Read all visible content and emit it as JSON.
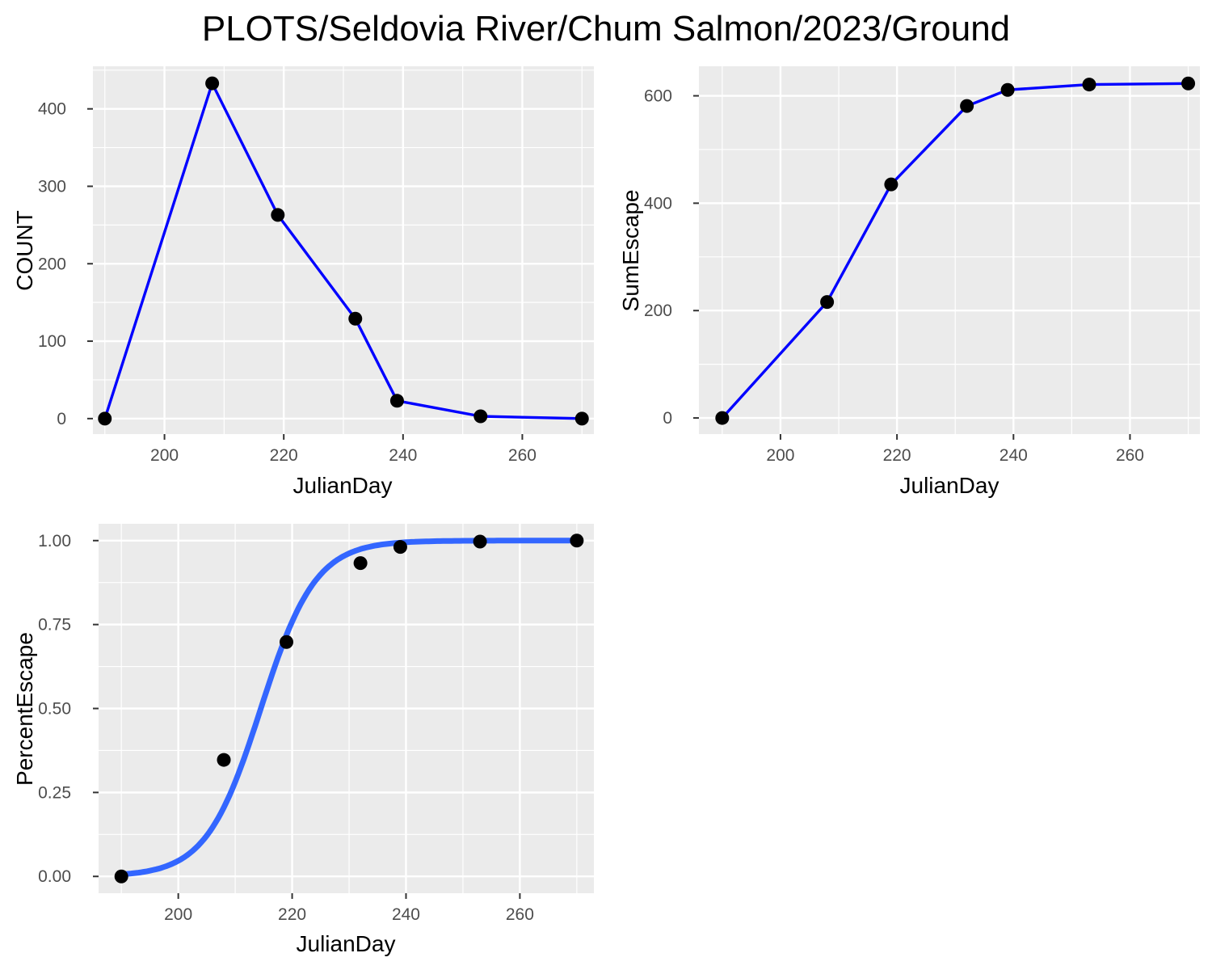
{
  "title": "PLOTS/Seldovia River/Chum Salmon/2023/Ground",
  "colors": {
    "panel": "#ebebeb",
    "grid": "#ffffff",
    "line": "#0000ff",
    "smooth": "#3366ff",
    "point": "#000000",
    "tick": "#333333"
  },
  "chart_data": [
    {
      "type": "line",
      "xlabel": "JulianDay",
      "ylabel": "COUNT",
      "xlim": [
        188,
        272
      ],
      "ylim": [
        -20,
        455
      ],
      "xticks": [
        200,
        220,
        240,
        260
      ],
      "yticks": [
        0,
        100,
        200,
        300,
        400
      ],
      "ytick_labels": [
        "0",
        "100",
        "200",
        "300",
        "400"
      ],
      "x": [
        190,
        208,
        219,
        232,
        239,
        253,
        270
      ],
      "y": [
        0,
        433,
        263,
        129,
        23,
        3,
        0
      ],
      "grid": true
    },
    {
      "type": "line",
      "xlabel": "JulianDay",
      "ylabel": "SumEscape",
      "xlim": [
        186,
        272
      ],
      "ylim": [
        -30,
        655
      ],
      "xticks": [
        200,
        220,
        240,
        260
      ],
      "yticks": [
        0,
        200,
        400,
        600
      ],
      "ytick_labels": [
        "0",
        "200",
        "400",
        "600"
      ],
      "x": [
        190,
        208,
        219,
        232,
        239,
        253,
        270
      ],
      "y": [
        0,
        216,
        435,
        581,
        611,
        621,
        623
      ],
      "grid": true
    },
    {
      "type": "scatter",
      "xlabel": "JulianDay",
      "ylabel": "PercentEscape",
      "xlim": [
        186,
        273
      ],
      "ylim": [
        -0.05,
        1.05
      ],
      "xticks": [
        200,
        220,
        240,
        260
      ],
      "yticks": [
        0,
        0.25,
        0.5,
        0.75,
        1
      ],
      "ytick_labels": [
        "0.00",
        "0.25",
        "0.50",
        "0.75",
        "1.00"
      ],
      "x": [
        190,
        208,
        219,
        232,
        239,
        253,
        270
      ],
      "y": [
        0.0,
        0.347,
        0.698,
        0.933,
        0.981,
        0.997,
        1.0
      ],
      "fit": {
        "type": "logistic",
        "midpoint": 214.5,
        "scale": 4.8
      },
      "grid": true
    }
  ]
}
